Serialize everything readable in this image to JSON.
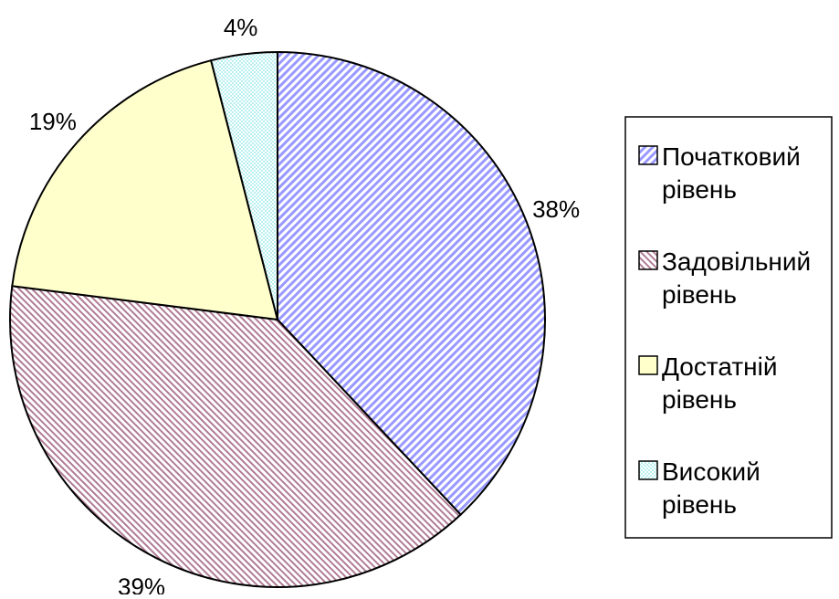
{
  "chart_data": {
    "type": "pie",
    "title": "",
    "categories": [
      "Початковий рівень",
      "Задовільний рівень",
      "Достатній рівень",
      "Високий рівень"
    ],
    "values": [
      38,
      39,
      19,
      4
    ],
    "labels": [
      "38%",
      "39%",
      "19%",
      "4%"
    ],
    "legend": {
      "position": "right",
      "entries": [
        {
          "line1": "Початковий",
          "line2": "рівень"
        },
        {
          "line1": "Задовільний",
          "line2": "рівень"
        },
        {
          "line1": "Достатній",
          "line2": "рівень"
        },
        {
          "line1": "Високий",
          "line2": "рівень"
        }
      ]
    },
    "colors": [
      "#9999ff",
      "#993366",
      "#ffffcc",
      "#ccffff"
    ],
    "patterns": [
      "diagonal-right",
      "diagonal-left",
      "solid",
      "checker"
    ],
    "start": "12 o'clock",
    "direction": "clockwise"
  }
}
